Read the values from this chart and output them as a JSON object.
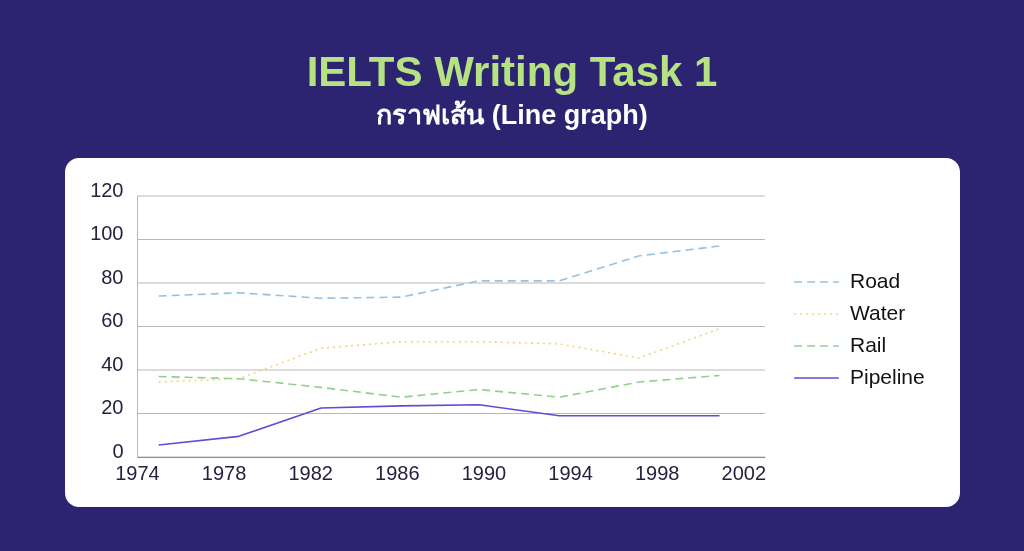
{
  "chart_data": {
    "type": "line",
    "title": "IELTS Writing Task 1",
    "subtitle": "กราฟเส้น (Line graph)",
    "x": [
      1975,
      1978.7,
      1982.5,
      1986.2,
      1989.8,
      1993.5,
      1997.2,
      2000.9
    ],
    "xlim": [
      1974,
      2003
    ],
    "xticks": [
      1974,
      1978,
      1982,
      1986,
      1990,
      1994,
      1998,
      2002
    ],
    "ylim": [
      0,
      120
    ],
    "yticks": [
      0,
      20,
      40,
      60,
      80,
      100,
      120
    ],
    "grid": "y",
    "legend": "right",
    "series": [
      {
        "name": "Road",
        "color": "#93c3e0",
        "line_style": "dashed",
        "values": [
          74,
          75.5,
          73,
          73.5,
          81,
          81,
          92.5,
          97
        ]
      },
      {
        "name": "Water",
        "color": "#f2d675",
        "line_style": "dotted",
        "values": [
          34.5,
          36,
          50,
          53,
          53,
          52,
          45.5,
          59
        ]
      },
      {
        "name": "Rail",
        "color": "#92cf8e",
        "line_style": "dashed",
        "values": [
          37,
          36,
          32,
          27.5,
          31,
          27.5,
          34.5,
          37.5
        ]
      },
      {
        "name": "Pipeline",
        "color": "#5a50d6",
        "line_style": "solid",
        "values": [
          5.5,
          9.5,
          22.5,
          23.5,
          24,
          19,
          19,
          19
        ]
      }
    ]
  }
}
